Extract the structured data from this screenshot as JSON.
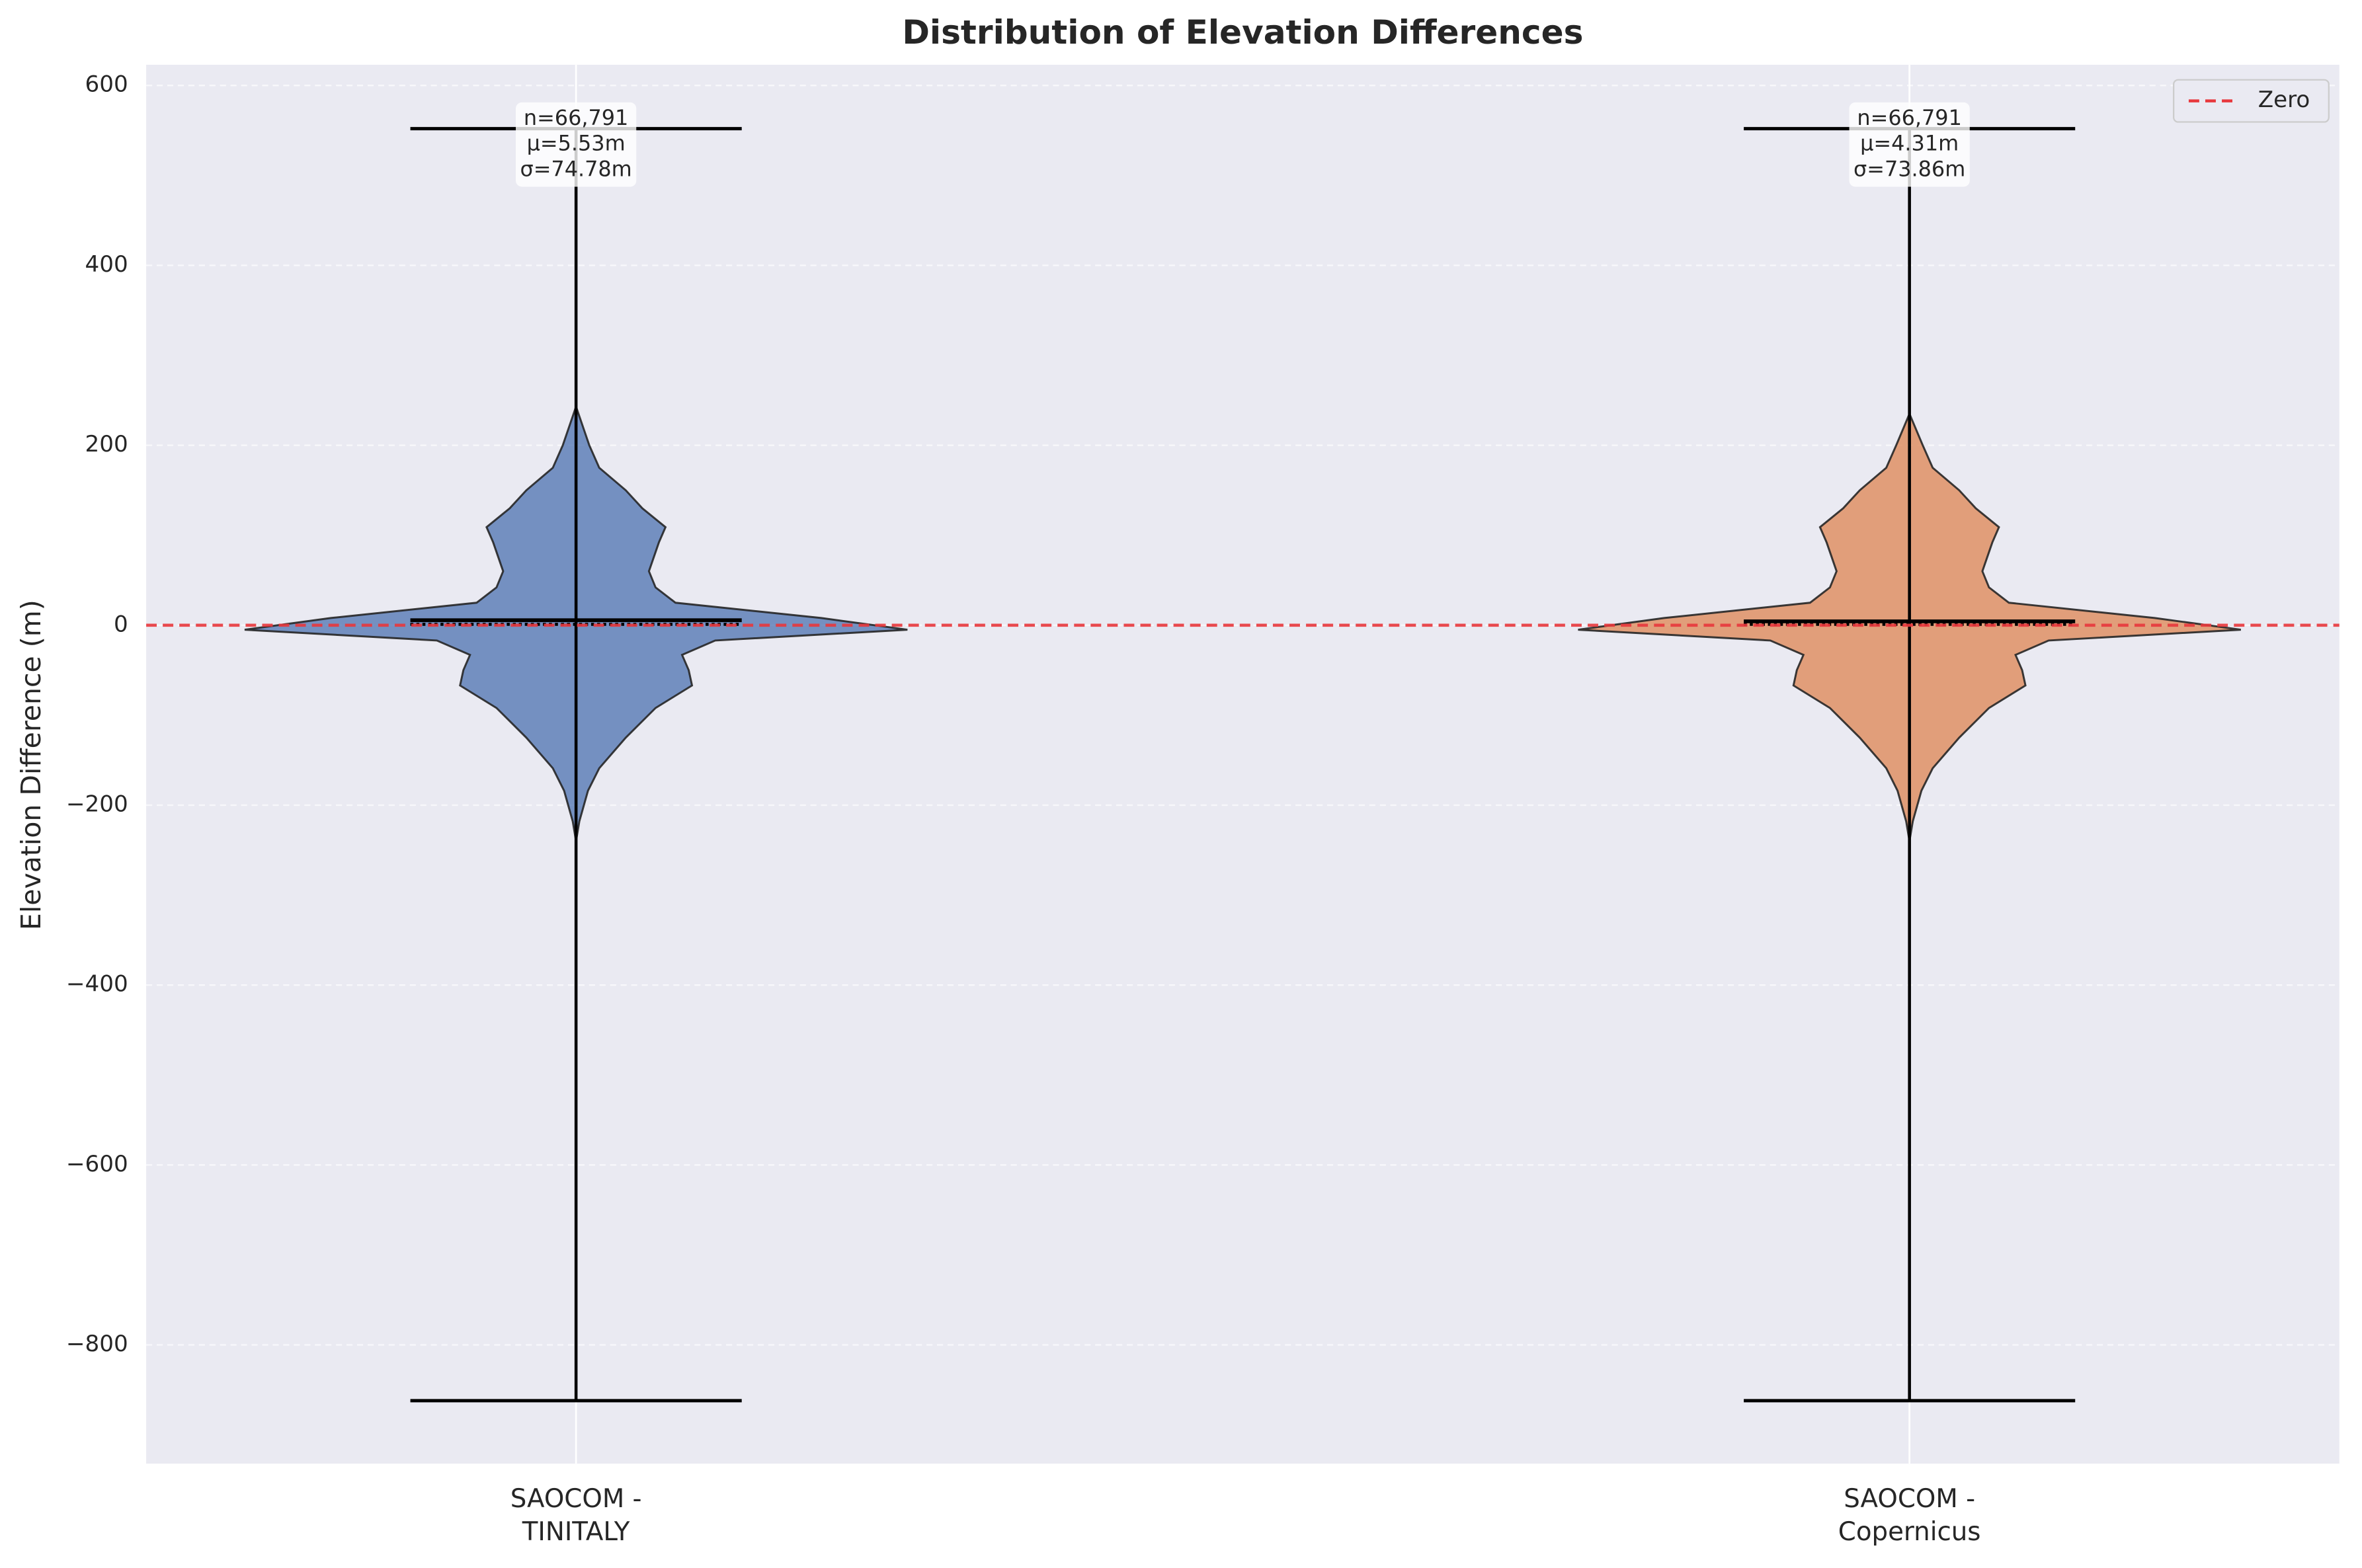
{
  "chart_data": {
    "type": "violin",
    "title": "Distribution of Elevation Differences",
    "y_label": "Elevation Difference (m)",
    "categories": [
      "SAOCOM -\nTINITALY",
      "SAOCOM -\nCopernicus"
    ],
    "ylim": [
      -932,
      623
    ],
    "yticks": [
      {
        "value": -800,
        "label": "−800"
      },
      {
        "value": -600,
        "label": "−600"
      },
      {
        "value": -400,
        "label": "−400"
      },
      {
        "value": -200,
        "label": "−200"
      },
      0,
      200,
      400,
      600
    ],
    "grid": true,
    "legend": "upper right",
    "reference_line": {
      "name": "Zero",
      "value": 0,
      "color": "#e8383d"
    },
    "series": [
      {
        "color": "#4c72b0",
        "max": 552,
        "min": -862,
        "mean": 5.53,
        "median": 1,
        "annotation": [
          "n=66,791",
          "μ=5.53m",
          "σ=74.78m"
        ],
        "density_y": [
          243,
          200,
          175,
          150,
          130,
          109,
          92,
          60,
          42,
          25,
          8,
          -5,
          -17,
          -33,
          -50,
          -67,
          -92,
          -125,
          -159,
          -184,
          -218,
          -240
        ],
        "density": [
          0,
          0.04,
          0.07,
          0.15,
          0.2,
          0.27,
          0.25,
          0.22,
          0.24,
          0.3,
          0.74,
          1,
          0.42,
          0.32,
          0.34,
          0.35,
          0.24,
          0.15,
          0.07,
          0.036,
          0.01,
          0
        ]
      },
      {
        "color": "#dd8452",
        "max": 552,
        "min": -862,
        "mean": 4.31,
        "median": 1,
        "annotation": [
          "n=66,791",
          "μ=4.31m",
          "σ=73.86m"
        ],
        "density_y": [
          235,
          200,
          175,
          150,
          130,
          109,
          92,
          60,
          42,
          25,
          8,
          -5,
          -17,
          -33,
          -50,
          -67,
          -92,
          -125,
          -159,
          -184,
          -218,
          -240
        ],
        "density": [
          0,
          0.04,
          0.07,
          0.15,
          0.2,
          0.27,
          0.25,
          0.22,
          0.24,
          0.3,
          0.74,
          1,
          0.42,
          0.32,
          0.34,
          0.35,
          0.24,
          0.15,
          0.07,
          0.036,
          0.01,
          0
        ]
      }
    ]
  }
}
